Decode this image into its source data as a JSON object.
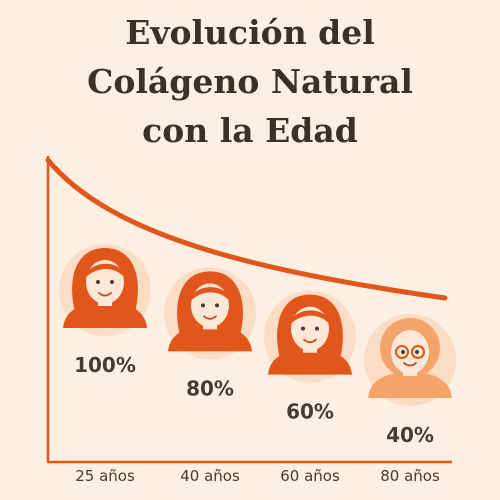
{
  "chart_data": {
    "type": "pictogram",
    "title": "Evolución del Colágeno Natural con la Edad",
    "categories": [
      "25 años",
      "40 años",
      "60 años",
      "80 años"
    ],
    "values": [
      100,
      80,
      60,
      40
    ],
    "value_labels": [
      "100%",
      "80%",
      "60%",
      "40%"
    ],
    "color": "#e0561b"
  }
}
